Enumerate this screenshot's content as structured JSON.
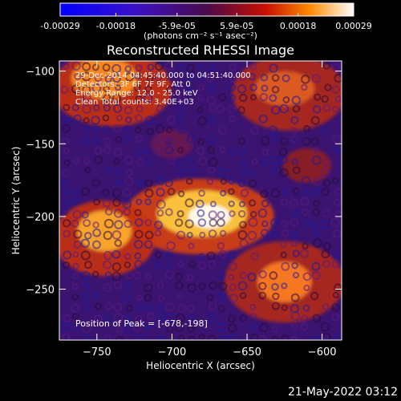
{
  "colorbar": {
    "ticks": [
      "-0.00029",
      "-0.00018",
      "-5.9e-05",
      "5.9e-05",
      "0.00018",
      "0.00029"
    ],
    "tick_values": [
      -0.00029,
      -0.00018,
      -5.9e-05,
      5.9e-05,
      0.00018,
      0.00029
    ],
    "range": [
      -0.00029,
      0.00029
    ],
    "units": "(photons cm⁻² s⁻¹ asec⁻²)"
  },
  "chart_data": {
    "type": "heatmap",
    "title": "Reconstructed RHESSI Image",
    "xlabel": "Heliocentric X (arcsec)",
    "ylabel": "Heliocentric Y (arcsec)",
    "xlim": [
      -775,
      -587
    ],
    "ylim": [
      -285,
      -93
    ],
    "xticks": [
      -750,
      -700,
      -650,
      -600
    ],
    "yticks": [
      -100,
      -150,
      -200,
      -250
    ],
    "colormap": "blue-purple-red-yellow-white",
    "peak_value": 0.00029,
    "annotations": [
      "29-Dec-2014 04:45:40.000 to 04:51:40.000",
      "Detectors: 3F 6F 7F 9F, Att 0",
      "Energy Range: 12.0 - 25.0 keV",
      "Clean   Total counts: 3.40E+03"
    ],
    "peak_label": "Position of Peak = [-678,-198]",
    "peak_position": [
      -678,
      -198
    ]
  },
  "footer": {
    "timestamp": "21-May-2022 03:12"
  }
}
